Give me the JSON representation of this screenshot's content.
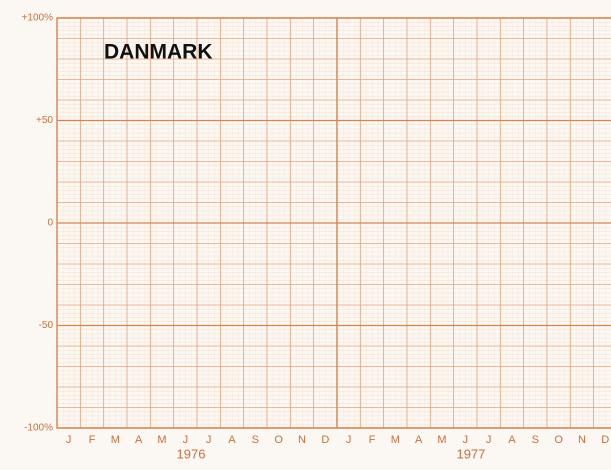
{
  "chart_data": {
    "type": "line",
    "title": "DANMARK",
    "categories": [
      "J",
      "F",
      "M",
      "A",
      "M",
      "J",
      "J",
      "A",
      "S",
      "O",
      "N",
      "D",
      "J",
      "F",
      "M",
      "A",
      "M",
      "J",
      "J",
      "A",
      "S",
      "O",
      "N",
      "D"
    ],
    "years": [
      "1976",
      "1977"
    ],
    "series": [],
    "ylim": [
      -100,
      100
    ],
    "yticks": [
      {
        "value": -100,
        "label": "-100%"
      },
      -50,
      0,
      {
        "value": 50,
        "label": "+50"
      },
      {
        "value": 100,
        "label": "+100%"
      }
    ],
    "grid": true,
    "color": "#d9824a"
  }
}
